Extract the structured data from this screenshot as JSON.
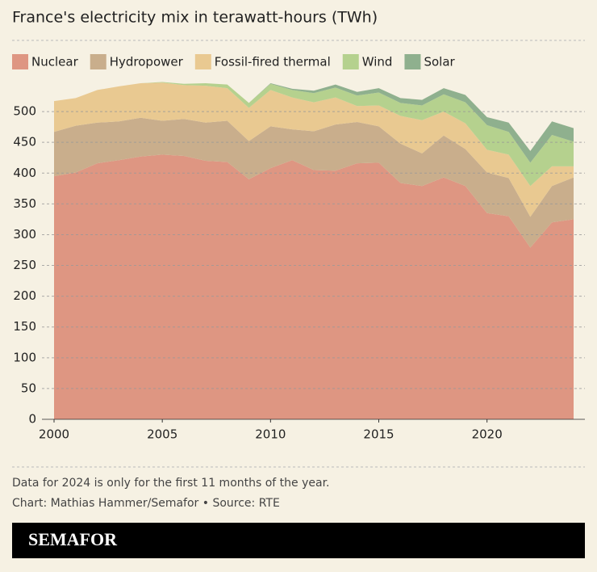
{
  "chart_data": {
    "type": "stacked-area",
    "title": "France's electricity mix in terawatt-hours (TWh)",
    "x": [
      2000,
      2001,
      2002,
      2003,
      2004,
      2005,
      2006,
      2007,
      2008,
      2009,
      2010,
      2011,
      2012,
      2013,
      2014,
      2015,
      2016,
      2017,
      2018,
      2019,
      2020,
      2021,
      2022,
      2023,
      2024
    ],
    "series": [
      {
        "name": "Nuclear",
        "color": "#de9682",
        "values": [
          395,
          401,
          416,
          421,
          427,
          430,
          428,
          420,
          418,
          390,
          408,
          421,
          405,
          404,
          416,
          417,
          384,
          379,
          393,
          379,
          335,
          330,
          279,
          320,
          325
        ]
      },
      {
        "name": "Hydropower",
        "color": "#c9ae8c",
        "values": [
          72,
          76,
          66,
          63,
          63,
          55,
          60,
          62,
          67,
          62,
          68,
          50,
          63,
          75,
          67,
          59,
          64,
          53,
          68,
          60,
          66,
          62,
          50,
          59,
          68
        ]
      },
      {
        "name": "Fossil-fired thermal",
        "color": "#e9c991",
        "values": [
          50,
          45,
          53,
          57,
          56,
          62,
          55,
          60,
          53,
          54,
          59,
          52,
          47,
          44,
          26,
          34,
          45,
          54,
          39,
          42,
          37,
          38,
          50,
          32,
          18
        ]
      },
      {
        "name": "Wind",
        "color": "#b5d18e",
        "values": [
          0,
          0,
          0,
          0,
          0,
          1,
          2,
          4,
          6,
          8,
          10,
          12,
          15,
          16,
          17,
          21,
          21,
          24,
          28,
          34,
          40,
          37,
          38,
          51,
          40
        ]
      },
      {
        "name": "Solar",
        "color": "#8fb08e",
        "values": [
          0,
          0,
          0,
          0,
          0,
          0,
          0,
          0,
          0,
          0,
          1,
          2,
          4,
          5,
          6,
          7,
          8,
          9,
          10,
          12,
          13,
          15,
          19,
          22,
          22
        ]
      }
    ],
    "xlim": [
      2000,
      2024
    ],
    "xticks": [
      2000,
      2005,
      2010,
      2015,
      2020
    ],
    "ylim": [
      0,
      550
    ],
    "yticks": [
      0,
      50,
      100,
      150,
      200,
      250,
      300,
      350,
      400,
      450,
      500
    ],
    "grid": true,
    "notes": [
      "Data for 2024 is only for the first 11 months of the year.",
      "Chart: Mathias Hammer/Semafor • Source: RTE"
    ],
    "brand": "SEMAFOR"
  }
}
